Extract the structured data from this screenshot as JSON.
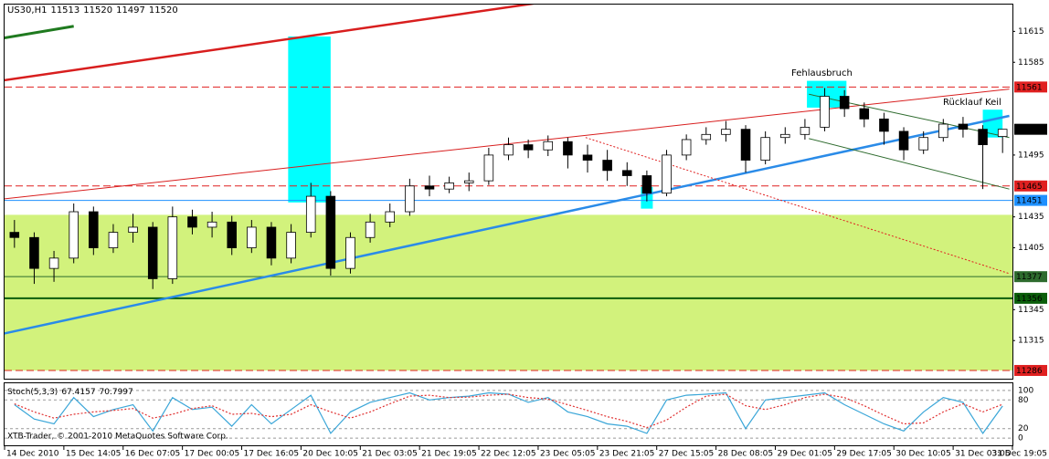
{
  "chart_data": [
    {
      "type": "candlestick",
      "title": "US30,H1",
      "xlim": [
        0,
        51
      ],
      "ylim": [
        11278,
        11641
      ],
      "xticks": [
        {
          "value": 0,
          "label": "14 Dec 2010"
        },
        {
          "value": 3,
          "label": "15 Dec 14:05"
        },
        {
          "value": 6,
          "label": "16 Dec 07:05"
        },
        {
          "value": 9,
          "label": "17 Dec 00:05"
        },
        {
          "value": 12,
          "label": "17 Dec 16:05"
        },
        {
          "value": 15,
          "label": "20 Dec 10:05"
        },
        {
          "value": 18,
          "label": "21 Dec 03:05"
        },
        {
          "value": 21,
          "label": "21 Dec 19:05"
        },
        {
          "value": 24,
          "label": "22 Dec 12:05"
        },
        {
          "value": 27,
          "label": "23 Dec 05:05"
        },
        {
          "value": 30,
          "label": "23 Dec 21:05"
        },
        {
          "value": 33,
          "label": "27 Dec 15:05"
        },
        {
          "value": 36,
          "label": "28 Dec 08:05"
        },
        {
          "value": 39,
          "label": "29 Dec 01:05"
        },
        {
          "value": 42,
          "label": "29 Dec 17:05"
        },
        {
          "value": 45,
          "label": "30 Dec 10:05"
        },
        {
          "value": 48,
          "label": "31 Dec 03:05"
        },
        {
          "value": 51,
          "label": "31 Dec 19:05"
        }
      ],
      "yticks": [
        11315,
        11345,
        11405,
        11435,
        11495,
        11585,
        11615
      ],
      "open": [
        11420,
        11415,
        11385,
        11395,
        11440,
        11405,
        11420,
        11425,
        11375,
        11435,
        11425,
        11430,
        11405,
        11425,
        11395,
        11420,
        11455,
        11385,
        11415,
        11430,
        11440,
        11465,
        11462,
        11468,
        11470,
        11495,
        11505,
        11500,
        11508,
        11495,
        11490,
        11480,
        11475,
        11458,
        11495,
        11510,
        11515,
        11520,
        11490,
        11512,
        11515,
        11522,
        11552,
        11540,
        11530,
        11518,
        11500,
        11512,
        11525,
        11520,
        11513
      ],
      "high": [
        11432,
        11420,
        11402,
        11448,
        11445,
        11428,
        11438,
        11430,
        11445,
        11442,
        11440,
        11436,
        11432,
        11430,
        11428,
        11468,
        11460,
        11420,
        11438,
        11448,
        11472,
        11475,
        11474,
        11478,
        11502,
        11512,
        11510,
        11514,
        11512,
        11505,
        11500,
        11488,
        11480,
        11500,
        11515,
        11522,
        11528,
        11524,
        11518,
        11522,
        11530,
        11560,
        11558,
        11546,
        11536,
        11522,
        11518,
        11530,
        11532,
        11524,
        11520
      ],
      "low": [
        11405,
        11370,
        11372,
        11390,
        11398,
        11400,
        11410,
        11365,
        11370,
        11418,
        11415,
        11398,
        11400,
        11388,
        11390,
        11415,
        11378,
        11380,
        11410,
        11425,
        11436,
        11455,
        11458,
        11460,
        11466,
        11490,
        11492,
        11494,
        11482,
        11478,
        11470,
        11465,
        11450,
        11455,
        11490,
        11505,
        11508,
        11478,
        11486,
        11506,
        11510,
        11518,
        11532,
        11522,
        11505,
        11490,
        11496,
        11508,
        11512,
        11462,
        11497
      ],
      "close": [
        11415,
        11385,
        11395,
        11440,
        11405,
        11420,
        11425,
        11375,
        11435,
        11425,
        11430,
        11405,
        11425,
        11395,
        11420,
        11455,
        11385,
        11415,
        11430,
        11440,
        11465,
        11462,
        11468,
        11470,
        11495,
        11505,
        11500,
        11508,
        11495,
        11490,
        11480,
        11475,
        11458,
        11495,
        11510,
        11515,
        11520,
        11490,
        11512,
        11515,
        11522,
        11552,
        11540,
        11530,
        11518,
        11500,
        11512,
        11525,
        11520,
        11505,
        11520
      ],
      "levels": [
        {
          "value": 11561,
          "color": "#e02020",
          "style": "dashed"
        },
        {
          "value": 11465,
          "color": "#e02020",
          "style": "dashed"
        },
        {
          "value": 11451,
          "color": "#1e90ff",
          "style": "solid"
        },
        {
          "value": 11377,
          "color": "#2e6b2e",
          "style": "solid"
        },
        {
          "value": 11356,
          "color": "#0b5e0b",
          "style": "thick"
        },
        {
          "value": 11286,
          "color": "#e02020",
          "style": "dashed"
        }
      ],
      "zones": [
        {
          "y": [
            11286,
            11437
          ],
          "color": "#d2f27c"
        }
      ],
      "highlight_color": "#00ffff",
      "highlights": [
        {
          "x": [
            14.35,
            16.5
          ],
          "y": [
            11449,
            11610
          ]
        },
        {
          "x": [
            40.6,
            42.6
          ],
          "y": [
            11541,
            11567
          ]
        },
        {
          "x": [
            49.5,
            50.5
          ],
          "y": [
            11512,
            11539
          ]
        },
        {
          "x": [
            32.2,
            32.8
          ],
          "y": [
            11443,
            11464
          ]
        }
      ],
      "lines": [
        {
          "x": [
            -0.2,
            3.5
          ],
          "y": [
            11608,
            11620
          ],
          "color": "#1f7a1f",
          "width": 3,
          "style": "solid"
        },
        {
          "x": [
            -0.23,
            26.76
          ],
          "y": [
            11567,
            11642
          ],
          "color": "#d81e1e",
          "width": 2.5,
          "style": "solid"
        },
        {
          "x": [
            -0.23,
            50.84
          ],
          "y": [
            11452,
            11559
          ],
          "color": "#d81e1e",
          "width": 1,
          "style": "solid"
        },
        {
          "x": [
            -0.23,
            50.84
          ],
          "y": [
            11321,
            11533
          ],
          "color": "#2a8be8",
          "width": 2.5,
          "style": "solid"
        },
        {
          "x": [
            29.4,
            50.84
          ],
          "y": [
            11512,
            11380
          ],
          "color": "#e02020",
          "width": 1,
          "style": "dotted"
        },
        {
          "x": [
            40.7,
            50.84
          ],
          "y": [
            11554,
            11512
          ],
          "color": "#2e6b2e",
          "width": 1,
          "style": "solid"
        },
        {
          "x": [
            40.7,
            50.84
          ],
          "y": [
            11511,
            11462
          ],
          "color": "#2e6b2e",
          "width": 1,
          "style": "solid"
        }
      ],
      "annotations": [
        "Fehlausbruch",
        "Rücklauf Keil"
      ]
    },
    {
      "type": "line",
      "title": "Stoch(5,3,3)",
      "ylim": [
        -15,
        115
      ],
      "yticks": [
        0,
        20,
        80,
        100
      ],
      "grid": true,
      "annotation": "XTB-Trader, © 2001-2010 MetaQuotes Software Corp.",
      "series": [
        {
          "name": "Main",
          "color": "#3aa6d8",
          "style": "solid",
          "values": [
            70,
            40,
            30,
            85,
            45,
            60,
            70,
            15,
            85,
            60,
            65,
            25,
            70,
            30,
            60,
            90,
            10,
            55,
            75,
            85,
            95,
            80,
            85,
            88,
            95,
            92,
            75,
            85,
            55,
            45,
            30,
            25,
            10,
            80,
            90,
            92,
            95,
            20,
            80,
            85,
            90,
            95,
            70,
            50,
            30,
            15,
            55,
            85,
            75,
            10,
            67.4157
          ]
        },
        {
          "name": "Signal",
          "color": "#e03030",
          "style": "dotted",
          "values": [
            72,
            55,
            42,
            50,
            55,
            58,
            62,
            42,
            50,
            62,
            68,
            50,
            52,
            45,
            50,
            70,
            55,
            42,
            55,
            72,
            88,
            90,
            85,
            86,
            90,
            92,
            85,
            82,
            70,
            58,
            45,
            35,
            22,
            38,
            65,
            88,
            92,
            68,
            60,
            70,
            85,
            92,
            85,
            68,
            48,
            30,
            32,
            55,
            72,
            55,
            70.7997
          ]
        }
      ]
    }
  ]
}
